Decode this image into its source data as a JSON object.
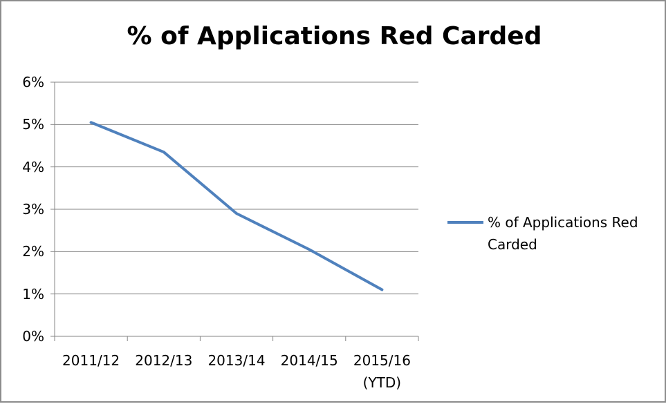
{
  "chart_data": {
    "type": "line",
    "title": "% of Applications Red Carded",
    "categories": [
      "2011/12",
      "2012/13",
      "2013/14",
      "2014/15",
      "2015/16 (YTD)"
    ],
    "series": [
      {
        "name": "% of Applications Red Carded",
        "color": "#4f81bd",
        "values": [
          5.05,
          4.35,
          2.9,
          2.05,
          1.1
        ]
      }
    ],
    "ylim": [
      0,
      6
    ],
    "yticks": [
      {
        "value": 0,
        "label": "0%"
      },
      {
        "value": 1,
        "label": "1%"
      },
      {
        "value": 2,
        "label": "2%"
      },
      {
        "value": 3,
        "label": "3%"
      },
      {
        "value": 4,
        "label": "4%"
      },
      {
        "value": 5,
        "label": "5%"
      },
      {
        "value": 6,
        "label": "6%"
      }
    ],
    "grid": true,
    "legend": "right"
  }
}
